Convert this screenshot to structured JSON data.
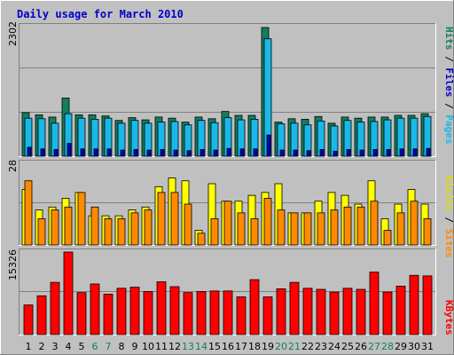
{
  "title": "Daily usage for March 2010",
  "colors": {
    "hits": "#127f5f",
    "files": "#1ab8e8",
    "pages": "#0000cc",
    "visits": "#ffff00",
    "sites": "#ff8a00",
    "kbytes": "#ff0000",
    "weekend_day": "#127f5f"
  },
  "chart_data": [
    {
      "type": "bar",
      "panel": "top",
      "categories": [
        "1",
        "2",
        "3",
        "4",
        "5",
        "6",
        "7",
        "8",
        "9",
        "10",
        "11",
        "12",
        "13",
        "14",
        "15",
        "16",
        "17",
        "18",
        "19",
        "20",
        "21",
        "22",
        "23",
        "24",
        "25",
        "26",
        "27",
        "28",
        "29",
        "30",
        "31"
      ],
      "weekend_days": [
        "6",
        "7",
        "13",
        "14",
        "20",
        "21",
        "27",
        "28"
      ],
      "ymax": 2302,
      "ylabel_parts": [
        "Pages",
        "Files",
        "Hits"
      ],
      "series": [
        {
          "name": "Hits",
          "values": [
            780,
            740,
            700,
            1040,
            740,
            740,
            720,
            640,
            690,
            650,
            700,
            680,
            610,
            700,
            670,
            800,
            730,
            730,
            2302,
            610,
            670,
            660,
            710,
            590,
            700,
            680,
            700,
            700,
            730,
            730,
            760
          ]
        },
        {
          "name": "Files",
          "values": [
            680,
            670,
            590,
            760,
            680,
            660,
            680,
            590,
            640,
            590,
            610,
            620,
            560,
            640,
            600,
            690,
            650,
            660,
            2100,
            580,
            590,
            560,
            630,
            540,
            640,
            610,
            620,
            650,
            680,
            680,
            710
          ]
        },
        {
          "name": "Pages",
          "values": [
            160,
            130,
            120,
            230,
            130,
            130,
            130,
            110,
            120,
            110,
            120,
            110,
            100,
            120,
            110,
            140,
            130,
            130,
            380,
            110,
            110,
            100,
            120,
            90,
            120,
            110,
            120,
            120,
            130,
            130,
            140
          ]
        }
      ]
    },
    {
      "type": "bar",
      "panel": "middle",
      "categories": [
        "1",
        "2",
        "3",
        "4",
        "5",
        "6",
        "7",
        "8",
        "9",
        "10",
        "11",
        "12",
        "13",
        "14",
        "15",
        "16",
        "17",
        "18",
        "19",
        "20",
        "21",
        "22",
        "23",
        "24",
        "25",
        "26",
        "27",
        "28",
        "29",
        "30",
        "31"
      ],
      "weekend_days": [
        "6",
        "7",
        "13",
        "14",
        "20",
        "21",
        "27",
        "28"
      ],
      "ymax": 28,
      "ylabel_parts": [
        "Sites",
        "Visits"
      ],
      "series": [
        {
          "name": "Visits",
          "values": [
            19,
            12,
            13,
            16,
            18,
            10,
            10,
            10,
            12,
            13,
            20,
            23,
            22,
            5,
            21,
            15,
            15,
            17,
            18,
            21,
            11,
            11,
            15,
            18,
            17,
            14,
            22,
            9,
            14,
            19,
            14
          ]
        },
        {
          "name": "Sites",
          "values": [
            22,
            9,
            12,
            13,
            18,
            13,
            9,
            9,
            11,
            12,
            18,
            18,
            14,
            4,
            9,
            15,
            11,
            9,
            16,
            12,
            11,
            11,
            11,
            12,
            13,
            13,
            15,
            5,
            11,
            15,
            9
          ]
        }
      ]
    },
    {
      "type": "bar",
      "panel": "bottom",
      "categories": [
        "1",
        "2",
        "3",
        "4",
        "5",
        "6",
        "7",
        "8",
        "9",
        "10",
        "11",
        "12",
        "13",
        "14",
        "15",
        "16",
        "17",
        "18",
        "19",
        "20",
        "21",
        "22",
        "23",
        "24",
        "25",
        "26",
        "27",
        "28",
        "29",
        "30",
        "31"
      ],
      "weekend_days": [
        "6",
        "7",
        "13",
        "14",
        "20",
        "21",
        "27",
        "28"
      ],
      "ymax": 15326,
      "ylabel_parts": [
        "KBytes"
      ],
      "series": [
        {
          "name": "KBytes",
          "values": [
            5500,
            7200,
            9700,
            15326,
            7800,
            9400,
            7500,
            8600,
            8800,
            8000,
            9800,
            8900,
            7800,
            8000,
            8100,
            8100,
            7000,
            10200,
            7000,
            8500,
            9700,
            8600,
            8400,
            7900,
            8600,
            8400,
            11600,
            7900,
            9000,
            11000,
            10900
          ]
        }
      ]
    }
  ]
}
